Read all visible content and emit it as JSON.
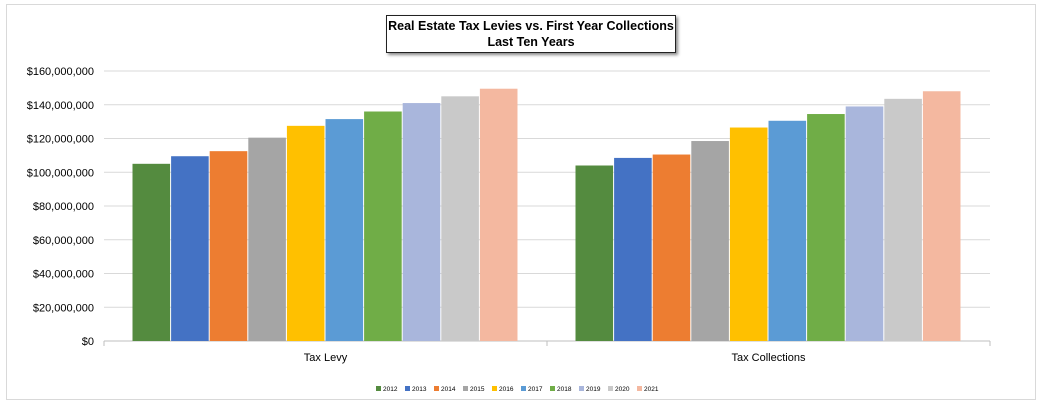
{
  "chart_data": {
    "type": "bar",
    "title": "Real Estate Tax Levies vs. First Year Collections",
    "subtitle": "Last Ten Years",
    "categories": [
      "Tax Levy",
      "Tax Collections"
    ],
    "ylim": [
      0,
      160000000
    ],
    "y_ticks": [
      "$0",
      "$20,000,000",
      "$40,000,000",
      "$60,000,000",
      "$80,000,000",
      "$100,000,000",
      "$120,000,000",
      "$140,000,000",
      "$160,000,000"
    ],
    "y_tick_values": [
      0,
      20000000,
      40000000,
      60000000,
      80000000,
      100000000,
      120000000,
      140000000,
      160000000
    ],
    "grid": true,
    "legend_position": "bottom",
    "series": [
      {
        "name": "2012",
        "color": "#548b3f",
        "values": [
          105000000,
          104000000
        ]
      },
      {
        "name": "2013",
        "color": "#4472c4",
        "values": [
          109500000,
          108500000
        ]
      },
      {
        "name": "2014",
        "color": "#ed7d31",
        "values": [
          112500000,
          110500000
        ]
      },
      {
        "name": "2015",
        "color": "#a5a5a5",
        "values": [
          120500000,
          118500000
        ]
      },
      {
        "name": "2016",
        "color": "#ffc000",
        "values": [
          127500000,
          126500000
        ]
      },
      {
        "name": "2017",
        "color": "#5b9bd5",
        "values": [
          131500000,
          130500000
        ]
      },
      {
        "name": "2018",
        "color": "#70ad47",
        "values": [
          136000000,
          134500000
        ]
      },
      {
        "name": "2019",
        "color": "#a9b6dc",
        "values": [
          141000000,
          139000000
        ]
      },
      {
        "name": "2020",
        "color": "#c9c9c9",
        "values": [
          145000000,
          143500000
        ]
      },
      {
        "name": "2021",
        "color": "#f4b8a0",
        "values": [
          149500000,
          148000000
        ]
      }
    ]
  }
}
